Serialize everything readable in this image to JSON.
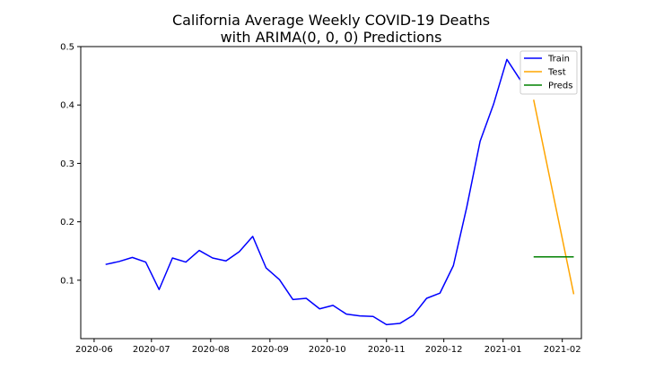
{
  "chart_data": {
    "type": "line",
    "title": [
      "California Average Weekly COVID-19 Deaths",
      "with ARIMA(0, 0, 0) Predictions"
    ],
    "xlabel": "",
    "ylabel": "",
    "x_range": [
      "2020-05-25",
      "2021-02-11"
    ],
    "y_range": [
      0.0,
      0.5
    ],
    "x_ticks": [
      "2020-06",
      "2020-07",
      "2020-08",
      "2020-09",
      "2020-10",
      "2020-11",
      "2020-12",
      "2021-01",
      "2021-02"
    ],
    "y_ticks": [
      "0.1",
      "0.2",
      "0.3",
      "0.4",
      "0.5"
    ],
    "grid": false,
    "legend_position": "top-right",
    "series": [
      {
        "name": "Train",
        "color": "#0000ff",
        "x": [
          "2020-06-07",
          "2020-06-14",
          "2020-06-21",
          "2020-06-28",
          "2020-07-05",
          "2020-07-12",
          "2020-07-19",
          "2020-07-26",
          "2020-08-02",
          "2020-08-09",
          "2020-08-16",
          "2020-08-23",
          "2020-08-30",
          "2020-09-06",
          "2020-09-13",
          "2020-09-20",
          "2020-09-27",
          "2020-10-04",
          "2020-10-11",
          "2020-10-18",
          "2020-10-25",
          "2020-11-01",
          "2020-11-08",
          "2020-11-15",
          "2020-11-22",
          "2020-11-29",
          "2020-12-06",
          "2020-12-13",
          "2020-12-20",
          "2020-12-27",
          "2021-01-03",
          "2021-01-10"
        ],
        "y": [
          0.127,
          0.132,
          0.139,
          0.131,
          0.084,
          0.138,
          0.131,
          0.151,
          0.138,
          0.133,
          0.149,
          0.175,
          0.121,
          0.101,
          0.067,
          0.069,
          0.051,
          0.057,
          0.042,
          0.039,
          0.038,
          0.024,
          0.026,
          0.04,
          0.069,
          0.078,
          0.125,
          0.225,
          0.338,
          0.401,
          0.478,
          0.443
        ]
      },
      {
        "name": "Test",
        "color": "#ffa500",
        "x": [
          "2021-01-17",
          "2021-02-07"
        ],
        "y": [
          0.409,
          0.076
        ]
      },
      {
        "name": "Preds",
        "color": "#008000",
        "x": [
          "2021-01-17",
          "2021-02-07"
        ],
        "y": [
          0.14,
          0.14
        ]
      }
    ]
  }
}
